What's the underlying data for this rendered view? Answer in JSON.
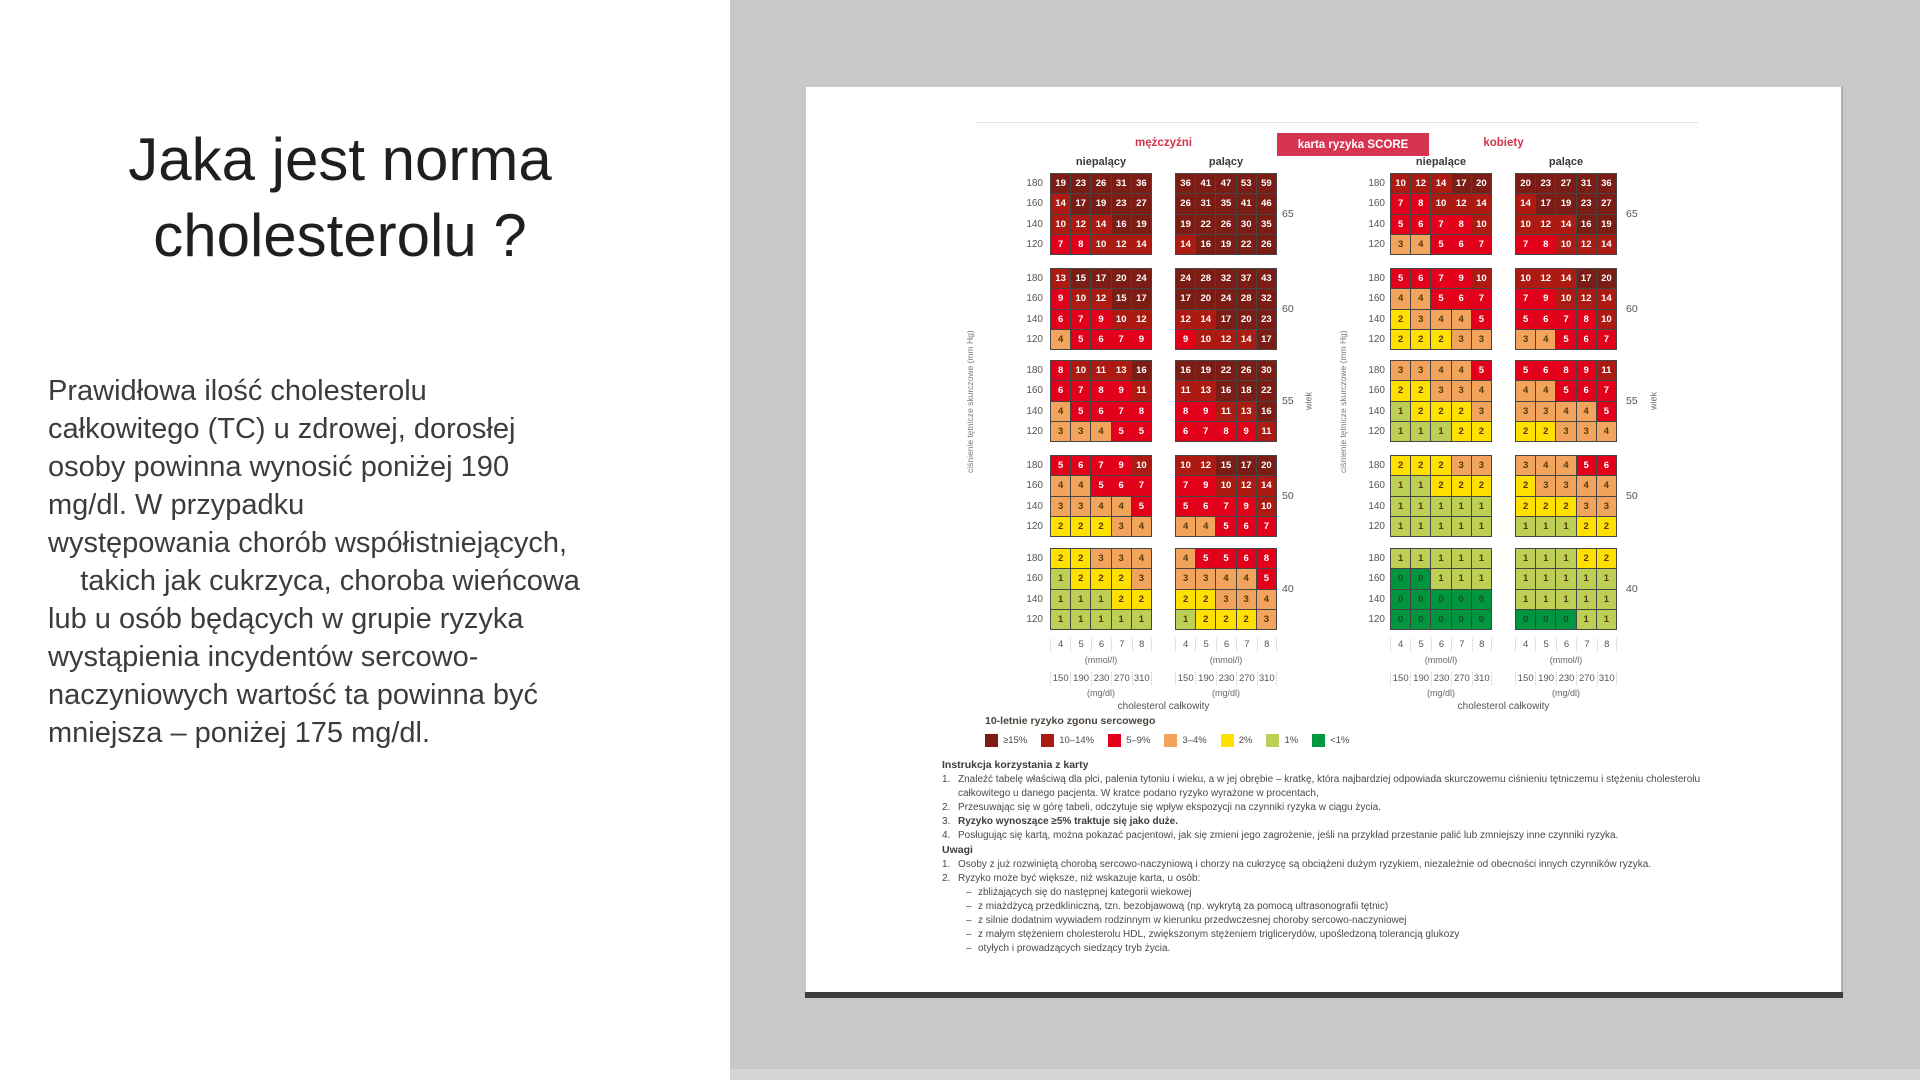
{
  "left_panel": {
    "title": "Jaka jest norma cholesterolu ?",
    "body_lines": [
      "Prawidłowa ilość cholesterolu",
      "całkowitego (TC) u zdrowej, dorosłej",
      "osoby powinna wynosić poniżej 190",
      "mg/dl. W przypadku",
      "występowania chorób współistniejących,",
      "    takich jak cukrzyca, choroba wieńcowa",
      "lub u osób będących w grupie ryzyka",
      "wystąpienia incydentów sercowo-",
      "naczyniowych wartość ta powinna być",
      "mniejsza – poniżej 175 mg/dl."
    ]
  },
  "slide": {
    "badge": "karta ryzyka SCORE",
    "chart_data": {
      "type": "heatmap",
      "title": "karta ryzyka SCORE",
      "y_title": "ciśnienie tętnicze skurczowe (mm Hg)",
      "x_title": "cholesterol całkowity",
      "x_unit_1": "(mmol/l)",
      "x_unit_2": "(mg/dl)",
      "x_mmol": [
        "4",
        "5",
        "6",
        "7",
        "8"
      ],
      "x_mgdl": [
        "150",
        "190",
        "230",
        "270",
        "310"
      ],
      "sbp_rows": [
        "180",
        "160",
        "140",
        "120"
      ],
      "ages": [
        "65",
        "60",
        "55",
        "50",
        "40"
      ],
      "age_axis_label": "wiek",
      "genders": [
        {
          "label": "mężczyźni",
          "columns": [
            {
              "label": "niepalący",
              "blocks": [
                [
                  [
                    19,
                    23,
                    26,
                    31,
                    36
                  ],
                  [
                    14,
                    17,
                    19,
                    23,
                    27
                  ],
                  [
                    10,
                    12,
                    14,
                    16,
                    19
                  ],
                  [
                    7,
                    8,
                    10,
                    12,
                    14
                  ]
                ],
                [
                  [
                    13,
                    15,
                    17,
                    20,
                    24
                  ],
                  [
                    9,
                    10,
                    12,
                    15,
                    17
                  ],
                  [
                    6,
                    7,
                    9,
                    10,
                    12
                  ],
                  [
                    4,
                    5,
                    6,
                    7,
                    9
                  ]
                ],
                [
                  [
                    8,
                    10,
                    11,
                    13,
                    16
                  ],
                  [
                    6,
                    7,
                    8,
                    9,
                    11
                  ],
                  [
                    4,
                    5,
                    6,
                    7,
                    8
                  ],
                  [
                    3,
                    3,
                    4,
                    5,
                    5
                  ]
                ],
                [
                  [
                    5,
                    6,
                    7,
                    9,
                    10
                  ],
                  [
                    4,
                    4,
                    5,
                    6,
                    7
                  ],
                  [
                    3,
                    3,
                    4,
                    4,
                    5
                  ],
                  [
                    2,
                    2,
                    2,
                    3,
                    4
                  ]
                ],
                [
                  [
                    2,
                    2,
                    3,
                    3,
                    4
                  ],
                  [
                    1,
                    2,
                    2,
                    2,
                    3
                  ],
                  [
                    1,
                    1,
                    1,
                    2,
                    2
                  ],
                  [
                    1,
                    1,
                    1,
                    1,
                    1
                  ]
                ]
              ]
            },
            {
              "label": "palący",
              "blocks": [
                [
                  [
                    36,
                    41,
                    47,
                    53,
                    59
                  ],
                  [
                    26,
                    31,
                    35,
                    41,
                    46
                  ],
                  [
                    19,
                    22,
                    26,
                    30,
                    35
                  ],
                  [
                    14,
                    16,
                    19,
                    22,
                    26
                  ]
                ],
                [
                  [
                    24,
                    28,
                    32,
                    37,
                    43
                  ],
                  [
                    17,
                    20,
                    24,
                    28,
                    32
                  ],
                  [
                    12,
                    14,
                    17,
                    20,
                    23
                  ],
                  [
                    9,
                    10,
                    12,
                    14,
                    17
                  ]
                ],
                [
                  [
                    16,
                    19,
                    22,
                    26,
                    30
                  ],
                  [
                    11,
                    13,
                    16,
                    18,
                    22
                  ],
                  [
                    8,
                    9,
                    11,
                    13,
                    16
                  ],
                  [
                    6,
                    7,
                    8,
                    9,
                    11
                  ]
                ],
                [
                  [
                    10,
                    12,
                    15,
                    17,
                    20
                  ],
                  [
                    7,
                    9,
                    10,
                    12,
                    14
                  ],
                  [
                    5,
                    6,
                    7,
                    9,
                    10
                  ],
                  [
                    4,
                    4,
                    5,
                    6,
                    7
                  ]
                ],
                [
                  [
                    4,
                    5,
                    5,
                    6,
                    8
                  ],
                  [
                    3,
                    3,
                    4,
                    4,
                    5
                  ],
                  [
                    2,
                    2,
                    3,
                    3,
                    4
                  ],
                  [
                    1,
                    2,
                    2,
                    2,
                    3
                  ]
                ]
              ]
            }
          ]
        },
        {
          "label": "kobiety",
          "columns": [
            {
              "label": "niepalące",
              "blocks": [
                [
                  [
                    10,
                    12,
                    14,
                    17,
                    20
                  ],
                  [
                    7,
                    8,
                    10,
                    12,
                    14
                  ],
                  [
                    5,
                    6,
                    7,
                    8,
                    10
                  ],
                  [
                    3,
                    4,
                    5,
                    6,
                    7
                  ]
                ],
                [
                  [
                    5,
                    6,
                    7,
                    9,
                    10
                  ],
                  [
                    4,
                    4,
                    5,
                    6,
                    7
                  ],
                  [
                    2,
                    3,
                    4,
                    4,
                    5
                  ],
                  [
                    2,
                    2,
                    2,
                    3,
                    3
                  ]
                ],
                [
                  [
                    3,
                    3,
                    4,
                    4,
                    5
                  ],
                  [
                    2,
                    2,
                    3,
                    3,
                    4
                  ],
                  [
                    1,
                    2,
                    2,
                    2,
                    3
                  ],
                  [
                    1,
                    1,
                    1,
                    2,
                    2
                  ]
                ],
                [
                  [
                    2,
                    2,
                    2,
                    3,
                    3
                  ],
                  [
                    1,
                    1,
                    2,
                    2,
                    2
                  ],
                  [
                    1,
                    1,
                    1,
                    1,
                    1
                  ],
                  [
                    1,
                    1,
                    1,
                    1,
                    1
                  ]
                ],
                [
                  [
                    1,
                    1,
                    1,
                    1,
                    1
                  ],
                  [
                    0,
                    0,
                    1,
                    1,
                    1
                  ],
                  [
                    0,
                    0,
                    0,
                    0,
                    0
                  ],
                  [
                    0,
                    0,
                    0,
                    0,
                    0
                  ]
                ]
              ]
            },
            {
              "label": "palące",
              "blocks": [
                [
                  [
                    20,
                    23,
                    27,
                    31,
                    36
                  ],
                  [
                    14,
                    17,
                    19,
                    23,
                    27
                  ],
                  [
                    10,
                    12,
                    14,
                    16,
                    19
                  ],
                  [
                    7,
                    8,
                    10,
                    12,
                    14
                  ]
                ],
                [
                  [
                    10,
                    12,
                    14,
                    17,
                    20
                  ],
                  [
                    7,
                    9,
                    10,
                    12,
                    14
                  ],
                  [
                    5,
                    6,
                    7,
                    8,
                    10
                  ],
                  [
                    3,
                    4,
                    5,
                    6,
                    7
                  ]
                ],
                [
                  [
                    5,
                    6,
                    8,
                    9,
                    11
                  ],
                  [
                    4,
                    4,
                    5,
                    6,
                    7
                  ],
                  [
                    3,
                    3,
                    4,
                    4,
                    5
                  ],
                  [
                    2,
                    2,
                    3,
                    3,
                    4
                  ]
                ],
                [
                  [
                    3,
                    4,
                    4,
                    5,
                    6
                  ],
                  [
                    2,
                    3,
                    3,
                    4,
                    4
                  ],
                  [
                    2,
                    2,
                    2,
                    3,
                    3
                  ],
                  [
                    1,
                    1,
                    1,
                    2,
                    2
                  ]
                ],
                [
                  [
                    1,
                    1,
                    1,
                    2,
                    2
                  ],
                  [
                    1,
                    1,
                    1,
                    1,
                    1
                  ],
                  [
                    1,
                    1,
                    1,
                    1,
                    1
                  ],
                  [
                    0,
                    0,
                    0,
                    1,
                    1
                  ]
                ]
              ]
            }
          ]
        }
      ]
    },
    "legend": {
      "title": "10-letnie ryzyko zgonu sercowego",
      "entries": [
        {
          "label": "≥15%",
          "color": "#7b1d15"
        },
        {
          "label": "10–14%",
          "color": "#ac1a12"
        },
        {
          "label": "5–9%",
          "color": "#e2001a"
        },
        {
          "label": "3–4%",
          "color": "#f2a45c"
        },
        {
          "label": "2%",
          "color": "#ffe000"
        },
        {
          "label": "1%",
          "color": "#bdd055"
        },
        {
          "label": "<1%",
          "color": "#009640"
        }
      ]
    },
    "instructions": {
      "title": "Instrukcja korzystania z karty",
      "items": [
        {
          "no": "1.",
          "text": "Znaleźć tabelę właściwą dla płci, palenia tytoniu i wieku, a w jej obrębie – kratkę, która najbardziej odpowiada skurczowemu ciśnieniu tętniczemu i stężeniu cholesterolu całkowitego u danego pacjenta. W kratce podano ryzyko wyrażone w procentach,",
          "bold": false
        },
        {
          "no": "2.",
          "text": "Przesuwając się w górę tabeli, odczytuje się wpływ ekspozycji na czynniki ryzyka w ciągu życia.",
          "bold": false
        },
        {
          "no": "3.",
          "text": "Ryzyko wynoszące ≥5% traktuje się jako duże.",
          "bold": true
        },
        {
          "no": "4.",
          "text": "Posługując się kartą, można pokazać pacjentowi, jak się zmieni jego zagrożenie, jeśli na przykład przestanie palić lub zmniejszy inne czynniki ryzyka.",
          "bold": false
        }
      ]
    },
    "notes": {
      "title": "Uwagi",
      "items": [
        {
          "no": "1.",
          "text": "Osoby z już rozwiniętą chorobą sercowo-naczyniową i chorzy na cukrzycę są obciążeni dużym ryzykiem, niezależnie od obecności innych czynników ryzyka."
        },
        {
          "no": "2.",
          "text": "Ryzyko może być większe, niż wskazuje karta, u osób:"
        }
      ],
      "sub_items": [
        "zbliżających się do następnej kategorii wiekowej",
        "z miażdżycą przedkliniczną, tzn. bezobjawową (np. wykrytą za pomocą ultrasonografii tętnic)",
        "z silnie dodatnim wywiadem rodzinnym w kierunku przedwczesnej choroby sercowo-naczyniowej",
        "z małym stężeniem cholesterolu HDL, zwiększonym stężeniem triglicerydów, upośledzoną tolerancją glukozy",
        "otyłych i prowadzących siedzący tryb życia."
      ]
    }
  }
}
